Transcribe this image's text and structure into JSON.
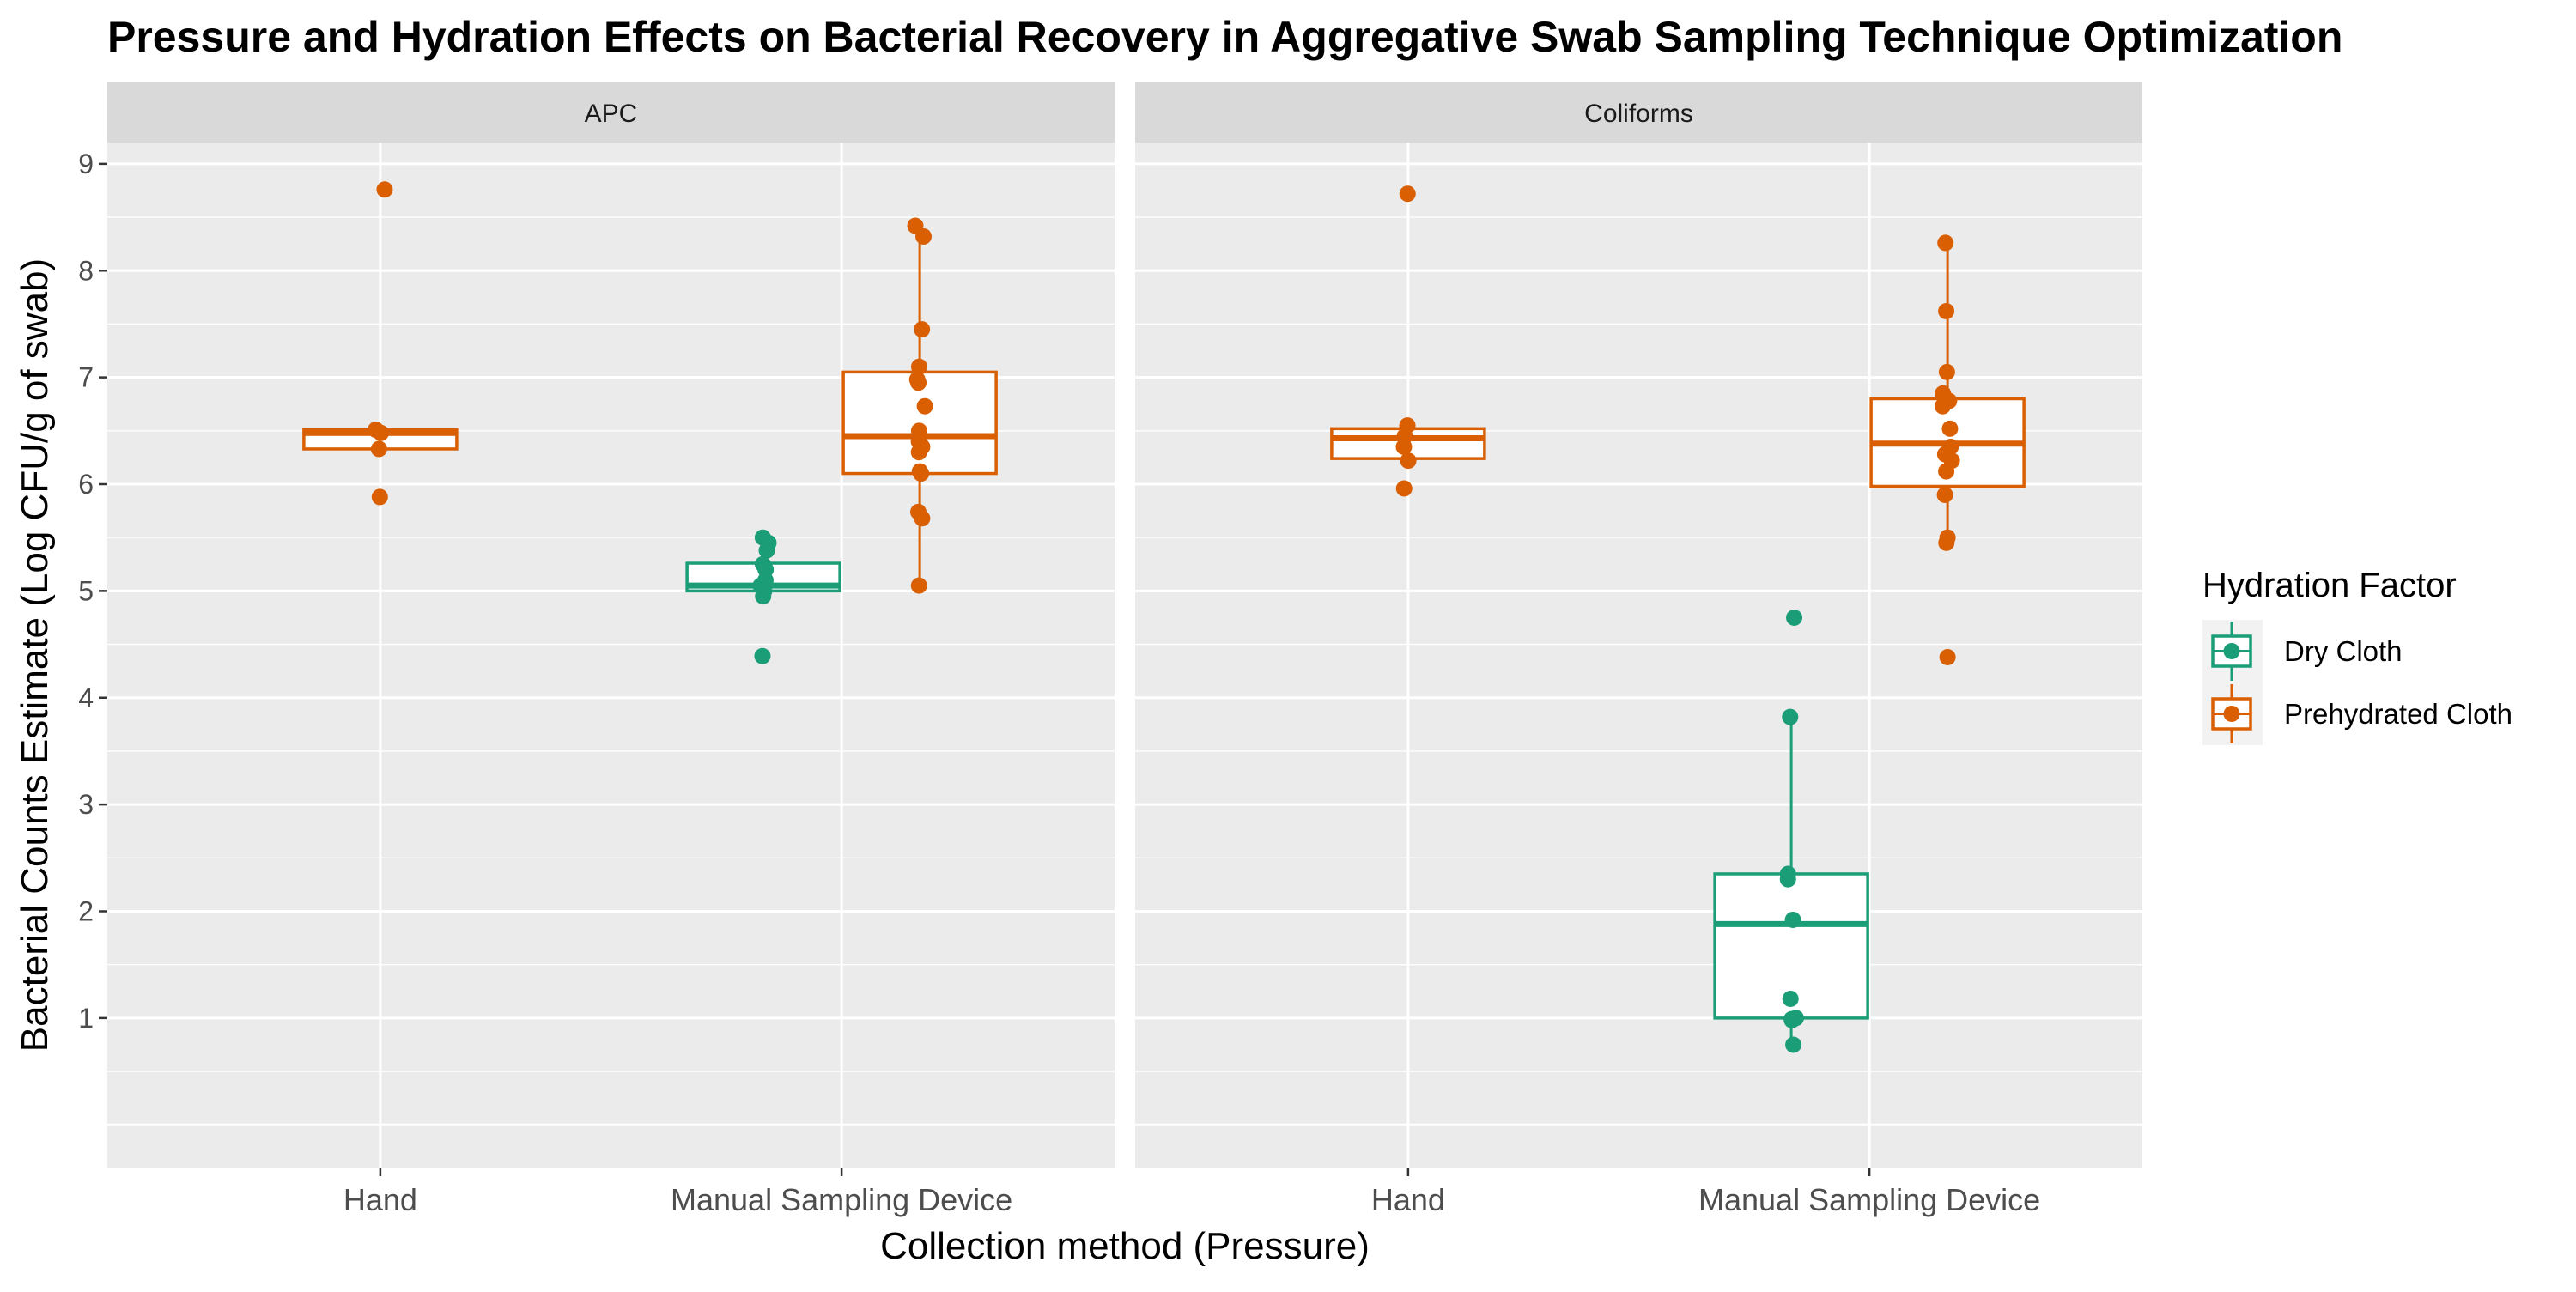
{
  "chart_data": {
    "type": "boxplot",
    "title": "Pressure and Hydration Effects on Bacterial Recovery in Aggregative Swab Sampling Technique Optimization",
    "xlabel": "Collection method (Pressure)",
    "ylabel": "Bacterial Counts Estimate (Log CFU/g of swab)",
    "ylim": [
      -0.4,
      9.2
    ],
    "y_ticks": [
      1,
      2,
      3,
      4,
      5,
      6,
      7,
      8,
      9
    ],
    "grid": true,
    "legend": {
      "title": "Hydration Factor",
      "position": "right",
      "entries": [
        {
          "label": "Dry Cloth",
          "color": "#1B9E77"
        },
        {
          "label": "Prehydrated Cloth",
          "color": "#D95F02"
        }
      ]
    },
    "categories": [
      "Hand",
      "Manual Sampling Device"
    ],
    "facets": [
      {
        "label": "APC",
        "groups": [
          {
            "category": "Hand",
            "series": "Prehydrated Cloth",
            "box": {
              "min": 6.33,
              "q1": 6.33,
              "median": 6.48,
              "q3": 6.51,
              "max": 6.51
            },
            "points": [
              8.76,
              6.51,
              6.48,
              6.33,
              5.88
            ]
          },
          {
            "category": "Manual Sampling Device",
            "series": "Dry Cloth",
            "box": {
              "min": 4.95,
              "q1": 5.0,
              "median": 5.05,
              "q3": 5.26,
              "max": 5.5
            },
            "points": [
              5.5,
              5.45,
              5.38,
              5.25,
              5.2,
              5.1,
              5.05,
              5.0,
              4.95,
              4.39
            ]
          },
          {
            "category": "Manual Sampling Device",
            "series": "Prehydrated Cloth",
            "box": {
              "min": 5.05,
              "q1": 6.1,
              "median": 6.45,
              "q3": 7.05,
              "max": 8.42
            },
            "points": [
              8.42,
              8.32,
              7.45,
              7.1,
              6.98,
              6.95,
              6.73,
              6.5,
              6.4,
              6.35,
              6.3,
              6.12,
              6.1,
              5.74,
              5.68,
              5.05
            ]
          }
        ]
      },
      {
        "label": "Coliforms",
        "groups": [
          {
            "category": "Hand",
            "series": "Prehydrated Cloth",
            "box": {
              "min": 6.24,
              "q1": 6.24,
              "median": 6.43,
              "q3": 6.52,
              "max": 6.52
            },
            "points": [
              8.72,
              6.55,
              6.45,
              6.35,
              6.22,
              5.96
            ]
          },
          {
            "category": "Manual Sampling Device",
            "series": "Dry Cloth",
            "box": {
              "min": 0.75,
              "q1": 1.0,
              "median": 1.88,
              "q3": 2.35,
              "max": 3.82
            },
            "points": [
              4.75,
              3.82,
              2.35,
              2.3,
              1.92,
              1.18,
              1.0,
              0.99,
              0.98,
              0.75
            ]
          },
          {
            "category": "Manual Sampling Device",
            "series": "Prehydrated Cloth",
            "box": {
              "min": 5.45,
              "q1": 5.98,
              "median": 6.38,
              "q3": 6.8,
              "max": 8.26
            },
            "points": [
              8.26,
              7.62,
              7.05,
              6.85,
              6.78,
              6.73,
              6.52,
              6.35,
              6.28,
              6.22,
              6.12,
              5.9,
              5.5,
              5.45,
              4.38
            ]
          }
        ]
      }
    ]
  }
}
